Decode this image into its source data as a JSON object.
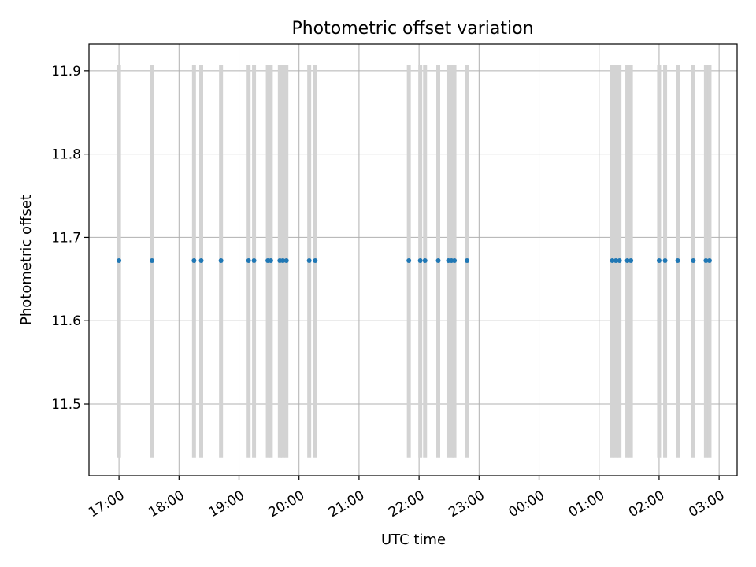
{
  "chart_data": {
    "type": "scatter",
    "title": "Photometric offset variation",
    "xlabel": "UTC time",
    "ylabel": "Photometric offset",
    "x_axis": {
      "ticks": [
        {
          "value": 17.0,
          "label": "17:00"
        },
        {
          "value": 18.0,
          "label": "18:00"
        },
        {
          "value": 19.0,
          "label": "19:00"
        },
        {
          "value": 20.0,
          "label": "20:00"
        },
        {
          "value": 21.0,
          "label": "21:00"
        },
        {
          "value": 22.0,
          "label": "22:00"
        },
        {
          "value": 23.0,
          "label": "23:00"
        },
        {
          "value": 24.0,
          "label": "00:00"
        },
        {
          "value": 25.0,
          "label": "01:00"
        },
        {
          "value": 26.0,
          "label": "02:00"
        },
        {
          "value": 27.0,
          "label": "03:00"
        }
      ],
      "range": [
        16.5,
        27.3
      ]
    },
    "y_axis": {
      "ticks": [
        {
          "value": 11.5,
          "label": "11.5"
        },
        {
          "value": 11.6,
          "label": "11.6"
        },
        {
          "value": 11.7,
          "label": "11.7"
        },
        {
          "value": 11.8,
          "label": "11.8"
        },
        {
          "value": 11.9,
          "label": "11.9"
        }
      ],
      "range": [
        11.414,
        11.932
      ]
    },
    "grid": true,
    "error_bar_color": "#d3d3d3",
    "point_color": "#1f77b4",
    "error_low": 11.436,
    "error_high": 11.907,
    "points": [
      {
        "x": 17.0,
        "y": 11.672
      },
      {
        "x": 17.55,
        "y": 11.672
      },
      {
        "x": 18.25,
        "y": 11.672
      },
      {
        "x": 18.37,
        "y": 11.672
      },
      {
        "x": 18.7,
        "y": 11.672
      },
      {
        "x": 19.16,
        "y": 11.672
      },
      {
        "x": 19.25,
        "y": 11.672
      },
      {
        "x": 19.48,
        "y": 11.672
      },
      {
        "x": 19.53,
        "y": 11.672
      },
      {
        "x": 19.68,
        "y": 11.672
      },
      {
        "x": 19.73,
        "y": 11.672
      },
      {
        "x": 19.79,
        "y": 11.672
      },
      {
        "x": 20.17,
        "y": 11.672
      },
      {
        "x": 20.27,
        "y": 11.672
      },
      {
        "x": 21.83,
        "y": 11.672
      },
      {
        "x": 22.02,
        "y": 11.672
      },
      {
        "x": 22.1,
        "y": 11.672
      },
      {
        "x": 22.32,
        "y": 11.672
      },
      {
        "x": 22.49,
        "y": 11.672
      },
      {
        "x": 22.54,
        "y": 11.672
      },
      {
        "x": 22.59,
        "y": 11.672
      },
      {
        "x": 22.8,
        "y": 11.672
      },
      {
        "x": 25.22,
        "y": 11.672
      },
      {
        "x": 25.28,
        "y": 11.672
      },
      {
        "x": 25.34,
        "y": 11.672
      },
      {
        "x": 25.47,
        "y": 11.672
      },
      {
        "x": 25.53,
        "y": 11.672
      },
      {
        "x": 26.0,
        "y": 11.672
      },
      {
        "x": 26.1,
        "y": 11.672
      },
      {
        "x": 26.31,
        "y": 11.672
      },
      {
        "x": 26.57,
        "y": 11.672
      },
      {
        "x": 26.78,
        "y": 11.672
      },
      {
        "x": 26.84,
        "y": 11.672
      }
    ]
  }
}
